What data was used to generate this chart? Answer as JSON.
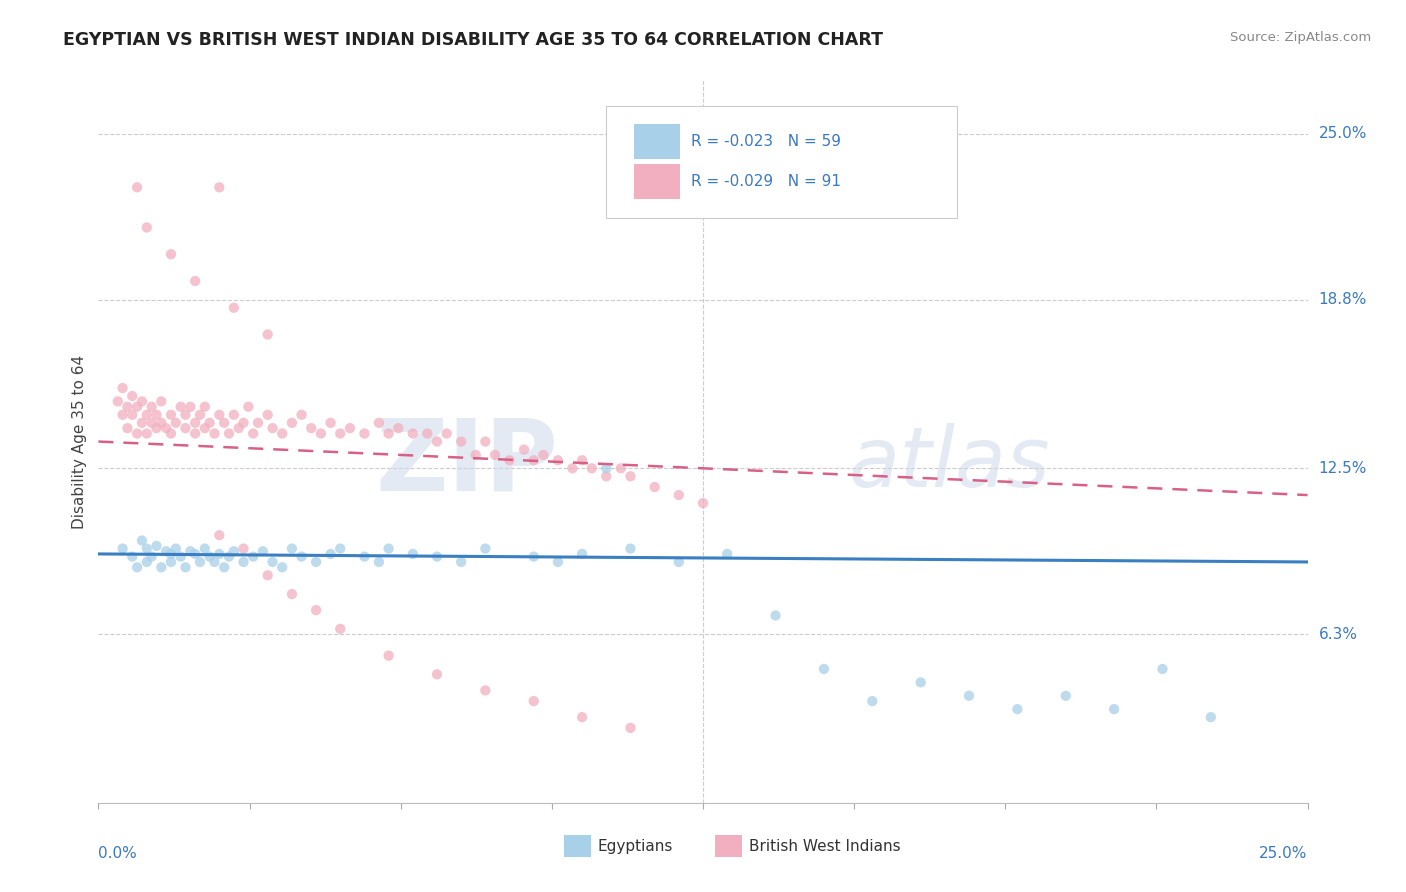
{
  "title": "EGYPTIAN VS BRITISH WEST INDIAN DISABILITY AGE 35 TO 64 CORRELATION CHART",
  "source": "Source: ZipAtlas.com",
  "ylabel": "Disability Age 35 to 64",
  "ytick_labels": [
    "6.3%",
    "12.5%",
    "18.8%",
    "25.0%"
  ],
  "ytick_values": [
    0.063,
    0.125,
    0.188,
    0.25
  ],
  "xlim": [
    0.0,
    0.25
  ],
  "ylim": [
    0.0,
    0.27
  ],
  "legend_r1": "R = -0.023",
  "legend_n1": "N = 59",
  "legend_r2": "R = -0.029",
  "legend_n2": "N = 91",
  "color_blue": "#a8d0e8",
  "color_pink": "#f2afc0",
  "color_blue_line": "#3a7fc1",
  "color_pink_line": "#d96085",
  "watermark_zip": "ZIP",
  "watermark_atlas": "atlas",
  "blue_x": [
    0.005,
    0.007,
    0.008,
    0.009,
    0.01,
    0.01,
    0.011,
    0.012,
    0.013,
    0.014,
    0.015,
    0.015,
    0.016,
    0.017,
    0.018,
    0.019,
    0.02,
    0.021,
    0.022,
    0.023,
    0.024,
    0.025,
    0.026,
    0.027,
    0.028,
    0.03,
    0.032,
    0.034,
    0.036,
    0.038,
    0.04,
    0.042,
    0.045,
    0.048,
    0.05,
    0.055,
    0.058,
    0.06,
    0.065,
    0.07,
    0.075,
    0.08,
    0.09,
    0.095,
    0.1,
    0.105,
    0.11,
    0.12,
    0.13,
    0.14,
    0.15,
    0.16,
    0.17,
    0.18,
    0.19,
    0.2,
    0.21,
    0.22,
    0.23
  ],
  "blue_y": [
    0.095,
    0.092,
    0.088,
    0.098,
    0.095,
    0.09,
    0.092,
    0.096,
    0.088,
    0.094,
    0.09,
    0.093,
    0.095,
    0.092,
    0.088,
    0.094,
    0.093,
    0.09,
    0.095,
    0.092,
    0.09,
    0.093,
    0.088,
    0.092,
    0.094,
    0.09,
    0.092,
    0.094,
    0.09,
    0.088,
    0.095,
    0.092,
    0.09,
    0.093,
    0.095,
    0.092,
    0.09,
    0.095,
    0.093,
    0.092,
    0.09,
    0.095,
    0.092,
    0.09,
    0.093,
    0.125,
    0.095,
    0.09,
    0.093,
    0.07,
    0.05,
    0.038,
    0.045,
    0.04,
    0.035,
    0.04,
    0.035,
    0.05,
    0.032
  ],
  "pink_x": [
    0.004,
    0.005,
    0.005,
    0.006,
    0.006,
    0.007,
    0.007,
    0.008,
    0.008,
    0.009,
    0.009,
    0.01,
    0.01,
    0.011,
    0.011,
    0.012,
    0.012,
    0.013,
    0.013,
    0.014,
    0.015,
    0.015,
    0.016,
    0.017,
    0.018,
    0.018,
    0.019,
    0.02,
    0.02,
    0.021,
    0.022,
    0.022,
    0.023,
    0.024,
    0.025,
    0.026,
    0.027,
    0.028,
    0.029,
    0.03,
    0.031,
    0.032,
    0.033,
    0.035,
    0.036,
    0.038,
    0.04,
    0.042,
    0.044,
    0.046,
    0.048,
    0.05,
    0.052,
    0.055,
    0.058,
    0.06,
    0.062,
    0.065,
    0.068,
    0.07,
    0.072,
    0.075,
    0.078,
    0.08,
    0.082,
    0.085,
    0.088,
    0.09,
    0.092,
    0.095,
    0.098,
    0.1,
    0.102,
    0.105,
    0.108,
    0.11,
    0.115,
    0.12,
    0.125,
    0.025,
    0.03,
    0.035,
    0.04,
    0.045,
    0.05,
    0.06,
    0.07,
    0.08,
    0.09,
    0.1,
    0.11
  ],
  "pink_y": [
    0.15,
    0.155,
    0.145,
    0.148,
    0.14,
    0.152,
    0.145,
    0.148,
    0.138,
    0.142,
    0.15,
    0.145,
    0.138,
    0.142,
    0.148,
    0.14,
    0.145,
    0.142,
    0.15,
    0.14,
    0.145,
    0.138,
    0.142,
    0.148,
    0.145,
    0.14,
    0.148,
    0.142,
    0.138,
    0.145,
    0.14,
    0.148,
    0.142,
    0.138,
    0.145,
    0.142,
    0.138,
    0.145,
    0.14,
    0.142,
    0.148,
    0.138,
    0.142,
    0.145,
    0.14,
    0.138,
    0.142,
    0.145,
    0.14,
    0.138,
    0.142,
    0.138,
    0.14,
    0.138,
    0.142,
    0.138,
    0.14,
    0.138,
    0.138,
    0.135,
    0.138,
    0.135,
    0.13,
    0.135,
    0.13,
    0.128,
    0.132,
    0.128,
    0.13,
    0.128,
    0.125,
    0.128,
    0.125,
    0.122,
    0.125,
    0.122,
    0.118,
    0.115,
    0.112,
    0.1,
    0.095,
    0.085,
    0.078,
    0.072,
    0.065,
    0.055,
    0.048,
    0.042,
    0.038,
    0.032,
    0.028
  ],
  "pink_high_x": [
    0.008,
    0.01,
    0.015,
    0.02,
    0.025,
    0.028,
    0.035
  ],
  "pink_high_y": [
    0.23,
    0.215,
    0.205,
    0.195,
    0.23,
    0.185,
    0.175
  ]
}
